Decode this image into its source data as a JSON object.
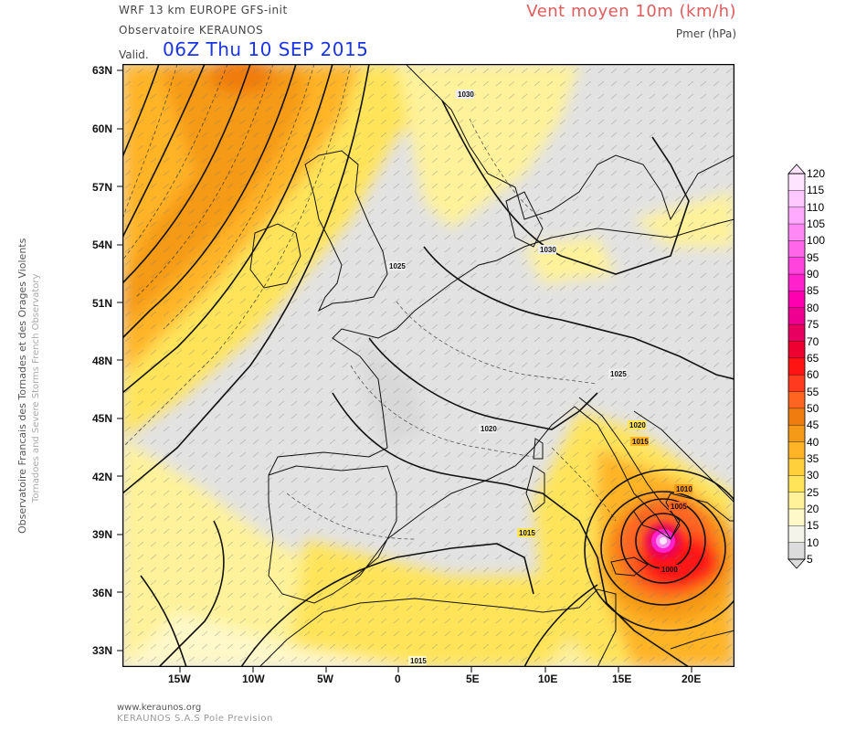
{
  "header": {
    "model_line": "WRF 13 km EUROPE  GFS-init",
    "org_line": "Observatoire KERAUNOS",
    "valid_label": "Valid.",
    "valid_time": "06Z Thu 10 SEP 2015",
    "field_title": "Vent moyen 10m (km/h)",
    "field_subtitle": "Pmer (hPa)"
  },
  "side_text": {
    "line1": "Observatoire Francais des Tornades et des Orages Violents",
    "line2": "Tornadoes and Severe Storms French Observatory"
  },
  "footer": {
    "url": "www.keraunos.org",
    "company": "KERAUNOS S.A.S Pole Prevision"
  },
  "map": {
    "lat_labels": [
      "63N",
      "60N",
      "57N",
      "54N",
      "51N",
      "48N",
      "45N",
      "42N",
      "39N",
      "36N",
      "33N"
    ],
    "lon_labels": [
      "15W",
      "10W",
      "5W",
      "0",
      "5E",
      "10E",
      "15E",
      "20E"
    ],
    "isobar_labels": [
      "1030",
      "1030",
      "1025",
      "1025",
      "1020",
      "1020",
      "1015",
      "1015",
      "1010",
      "1005",
      "1000",
      "1015"
    ]
  },
  "colorbar": {
    "levels": [
      "120",
      "115",
      "110",
      "105",
      "100",
      "95",
      "90",
      "85",
      "80",
      "75",
      "70",
      "65",
      "60",
      "55",
      "50",
      "45",
      "40",
      "35",
      "30",
      "25",
      "20",
      "15",
      "10",
      "5"
    ],
    "colors": [
      "#ffe4ff",
      "#ffc8ff",
      "#ffaaff",
      "#ff88f5",
      "#ff66ea",
      "#ff44dd",
      "#ff22cc",
      "#ff00b0",
      "#f00090",
      "#e80060",
      "#ee0030",
      "#ff1414",
      "#ff3a1e",
      "#ff6420",
      "#f07c10",
      "#f59a18",
      "#ffb428",
      "#ffcf3c",
      "#ffe45a",
      "#fff29a",
      "#fff8c8",
      "#f4f4ea",
      "#dcdcdc"
    ],
    "colors_note_removed": true
  }
}
